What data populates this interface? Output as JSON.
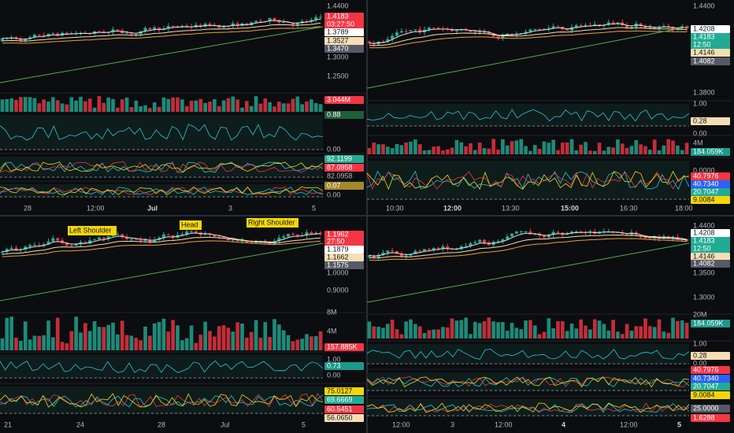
{
  "panels": [
    {
      "price_labels": [
        "1.4400",
        "1.4183",
        "03:27:50",
        "1.3789",
        "1.3527",
        "1.3470",
        "1.3000",
        "1.2500",
        "3.044M",
        "0.88",
        "0.00",
        "92.1199",
        "87.0958",
        "82.0958",
        "0.07",
        "0.00"
      ],
      "time_labels": [
        "28",
        "12:00",
        "Jul",
        "3",
        "5"
      ]
    },
    {
      "price_labels": [
        "1.4400",
        "1.4208",
        "1.4183",
        "12:50",
        "1.4146",
        "1.4082",
        "1.3800",
        "1.00",
        "0.28",
        "0.00",
        "4M",
        "184.059K",
        "0.0000",
        "40.7976",
        "40.7340",
        "20.7047",
        "9.0084"
      ],
      "time_labels": [
        "10:30",
        "12:00",
        "13:30",
        "15:00",
        "16:30",
        "18:00"
      ]
    },
    {
      "price_labels": [
        "1.1962",
        "27:50",
        "1.1879",
        "1.1662",
        "1.1575",
        "1.0000",
        "0.9000",
        "8M",
        "4M",
        "157.885K",
        "1.00",
        "0.73",
        "0.00",
        "75.0127",
        "69.6669",
        "60.5451",
        "56.0650"
      ],
      "time_labels": [
        "21",
        "24",
        "28",
        "Jul",
        "5"
      ],
      "annotations": [
        "Left Shoulder",
        "Head",
        "Right Shoulder"
      ]
    },
    {
      "price_labels": [
        "1.4400",
        "1.4208",
        "1.4183",
        "12:50",
        "1.4146",
        "1.4082",
        "1.3500",
        "1.3000",
        "20M",
        "184.059K",
        "1.00",
        "0.28",
        "0.00",
        "40.7976",
        "40.7340",
        "20.7047",
        "9.0084",
        "25.0000",
        "1.6288"
      ],
      "time_labels": [
        "12:00",
        "3",
        "12:00",
        "4",
        "12:00",
        "5"
      ]
    }
  ]
}
